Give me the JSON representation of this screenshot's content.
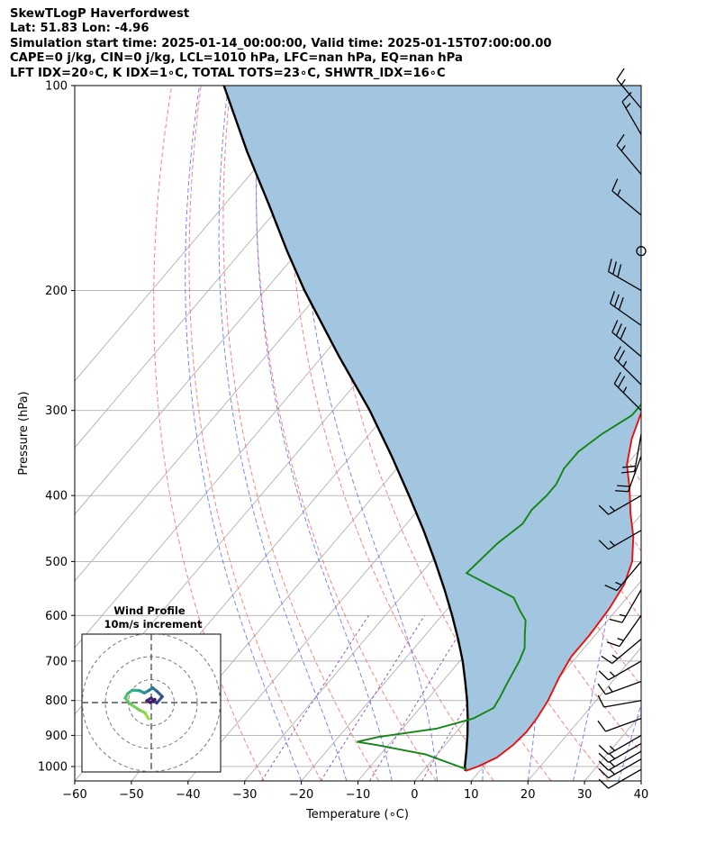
{
  "header": {
    "title": "SkewTLogP Haverfordwest",
    "location": "Lat: 51.83   Lon: -4.96",
    "times": "Simulation start time: 2025-01-14_00:00:00, Valid time: 2025-01-15T07:00:00.00",
    "parcel": "CAPE=0 j/kg, CIN=0 j/kg, LCL=1010 hPa, LFC=nan hPa, EQ=nan hPa",
    "indices": "LFT IDX=20∘C, K IDX=1∘C, TOTAL TOTS=23∘C, SHWTR_IDX=16∘C"
  },
  "chart_data": [
    {
      "type": "line",
      "subtype": "skew-t-log-p",
      "xlabel": "Temperature (∘C)",
      "ylabel": "Pressure (hPa)",
      "xlim": [
        -60,
        40
      ],
      "ylim": [
        1050,
        100
      ],
      "y_scale": "log",
      "x_ticks": [
        -60,
        -50,
        -40,
        -30,
        -20,
        -10,
        0,
        10,
        20,
        30,
        40
      ],
      "x_tick_labels": [
        "−60",
        "−50",
        "−40",
        "−30",
        "−20",
        "−10",
        "0",
        "10",
        "20",
        "30",
        "40"
      ],
      "y_ticks": [
        1000,
        900,
        800,
        700,
        600,
        500,
        400,
        300,
        200,
        100
      ],
      "grid": true,
      "colors": {
        "temperature": "#e8110f",
        "dewpoint": "#138513",
        "parcel": "#000000",
        "shading": "#a2c6e0",
        "dry_adiabats": "#f07070",
        "moist_adiabats": "#6272ee",
        "mixing_ratio": "#9c52c4",
        "isotherms": "#b0b0b0"
      },
      "series": [
        {
          "role": "temperature",
          "points": [
            [
              7.5,
              1015
            ],
            [
              9,
              1000
            ],
            [
              11,
              970
            ],
            [
              12,
              930
            ],
            [
              12.4,
              890
            ],
            [
              12.2,
              850
            ],
            [
              11.5,
              800
            ],
            [
              10,
              740
            ],
            [
              9,
              690
            ],
            [
              9,
              640
            ],
            [
              8.5,
              585
            ],
            [
              7.5,
              540
            ],
            [
              5.5,
              500
            ],
            [
              2,
              460
            ],
            [
              -2,
              425
            ],
            [
              -6,
              390
            ],
            [
              -10,
              360
            ],
            [
              -13,
              330
            ],
            [
              -15,
              305
            ],
            [
              -17,
              280
            ],
            [
              -18.5,
              260
            ],
            [
              -20,
              240
            ],
            [
              -21,
              225
            ],
            [
              -21.5,
              215
            ],
            [
              -21,
              205
            ],
            [
              -19.8,
              200
            ],
            [
              -18.7,
              190
            ],
            [
              -18.5,
              180
            ],
            [
              -18,
              170
            ],
            [
              -17.5,
              162
            ],
            [
              -16,
              155
            ],
            [
              -13,
              145
            ],
            [
              -11,
              135
            ],
            [
              -9,
              128
            ],
            [
              -7.5,
              120
            ],
            [
              -6.5,
              112
            ],
            [
              -5.5,
              105
            ],
            [
              -5,
              100
            ]
          ]
        },
        {
          "role": "dewpoint",
          "points": [
            [
              7.5,
              1010
            ],
            [
              -2,
              960
            ],
            [
              -12,
              930
            ],
            [
              -16,
              920
            ],
            [
              -13,
              905
            ],
            [
              -4,
              880
            ],
            [
              1,
              850
            ],
            [
              3,
              820
            ],
            [
              2.5,
              790
            ],
            [
              1.8,
              760
            ],
            [
              0.5,
              700
            ],
            [
              -0.5,
              670
            ],
            [
              -2.5,
              640
            ],
            [
              -4.5,
              610
            ],
            [
              -7,
              590
            ],
            [
              -10,
              565
            ],
            [
              -22,
              520
            ],
            [
              -21.5,
              495
            ],
            [
              -21,
              470
            ],
            [
              -19.5,
              440
            ],
            [
              -20,
              420
            ],
            [
              -19.5,
              400
            ],
            [
              -19.5,
              385
            ],
            [
              -20.5,
              365
            ],
            [
              -20.5,
              345
            ],
            [
              -19,
              325
            ],
            [
              -16.5,
              305
            ],
            [
              -16.5,
              290
            ],
            [
              -17.5,
              270
            ],
            [
              -18.5,
              250
            ],
            [
              -20,
              238
            ],
            [
              -21.5,
              220
            ],
            [
              -22.5,
              205
            ],
            [
              -24,
              200
            ],
            [
              -30,
              190
            ],
            [
              -26.5,
              178
            ],
            [
              -21.5,
              168
            ],
            [
              -21.5,
              160
            ],
            [
              -22.5,
              150
            ],
            [
              -24,
              140
            ],
            [
              -23,
              132
            ],
            [
              -20,
              124
            ],
            [
              -17,
              115
            ],
            [
              -14,
              106
            ],
            [
              -12.5,
              100
            ]
          ]
        },
        {
          "role": "parcel",
          "points": [
            [
              7.5,
              1015
            ],
            [
              6.7,
              1000
            ],
            [
              4.7,
              950
            ],
            [
              2.5,
              900
            ],
            [
              0,
              850
            ],
            [
              -2.8,
              800
            ],
            [
              -6,
              750
            ],
            [
              -9.5,
              700
            ],
            [
              -13.6,
              650
            ],
            [
              -18.2,
              600
            ],
            [
              -23.4,
              550
            ],
            [
              -29.3,
              500
            ],
            [
              -36,
              450
            ],
            [
              -43.8,
              400
            ],
            [
              -52.8,
              350
            ],
            [
              -63.5,
              300
            ],
            [
              -77,
              250
            ],
            [
              -93,
              200
            ],
            [
              -102,
              175
            ],
            [
              -112,
              150
            ],
            [
              -124,
              125
            ],
            [
              -138,
              100
            ]
          ]
        }
      ]
    },
    {
      "type": "scatter",
      "subtype": "hodograph",
      "title": "Wind Profile",
      "subtitle": "10m/s increment",
      "rings": [
        10,
        20,
        30
      ],
      "points": [
        [
          -0.6,
          -3.5
        ],
        [
          -1.4,
          -2.2
        ],
        [
          -2.6,
          -1.6
        ],
        [
          -4.7,
          -0.2
        ],
        [
          -5.7,
          1.0
        ],
        [
          -5.1,
          2.0
        ],
        [
          -4.1,
          2.7
        ],
        [
          -2.6,
          2.6
        ],
        [
          -1.5,
          2.1
        ],
        [
          -0.6,
          2.6
        ],
        [
          0.3,
          3.2
        ],
        [
          1.2,
          2.5
        ],
        [
          2.4,
          1.3
        ],
        [
          1.2,
          -0.1
        ],
        [
          0.0,
          1.0
        ],
        [
          -1.0,
          0.4
        ],
        [
          -0.2,
          0.0
        ],
        [
          0.8,
          0.7
        ]
      ]
    },
    {
      "type": "scatter",
      "subtype": "wind-barbs",
      "pressures": [
        1010,
        975,
        950,
        925,
        900,
        850,
        800,
        750,
        700,
        650,
        600,
        550,
        500,
        450,
        400,
        350,
        325,
        300,
        275,
        250,
        225,
        200,
        175,
        155,
        135,
        118,
        108
      ],
      "speed_kt": [
        12,
        15,
        15,
        15,
        15,
        10,
        10,
        15,
        15,
        15,
        15,
        15,
        15,
        15,
        15,
        20,
        20,
        25,
        25,
        30,
        30,
        30,
        0,
        15,
        15,
        15,
        15
      ],
      "direction_deg": [
        240,
        240,
        240,
        240,
        240,
        250,
        260,
        250,
        240,
        230,
        215,
        210,
        220,
        240,
        240,
        200,
        190,
        315,
        315,
        310,
        305,
        300,
        0,
        310,
        320,
        330,
        320
      ]
    }
  ]
}
